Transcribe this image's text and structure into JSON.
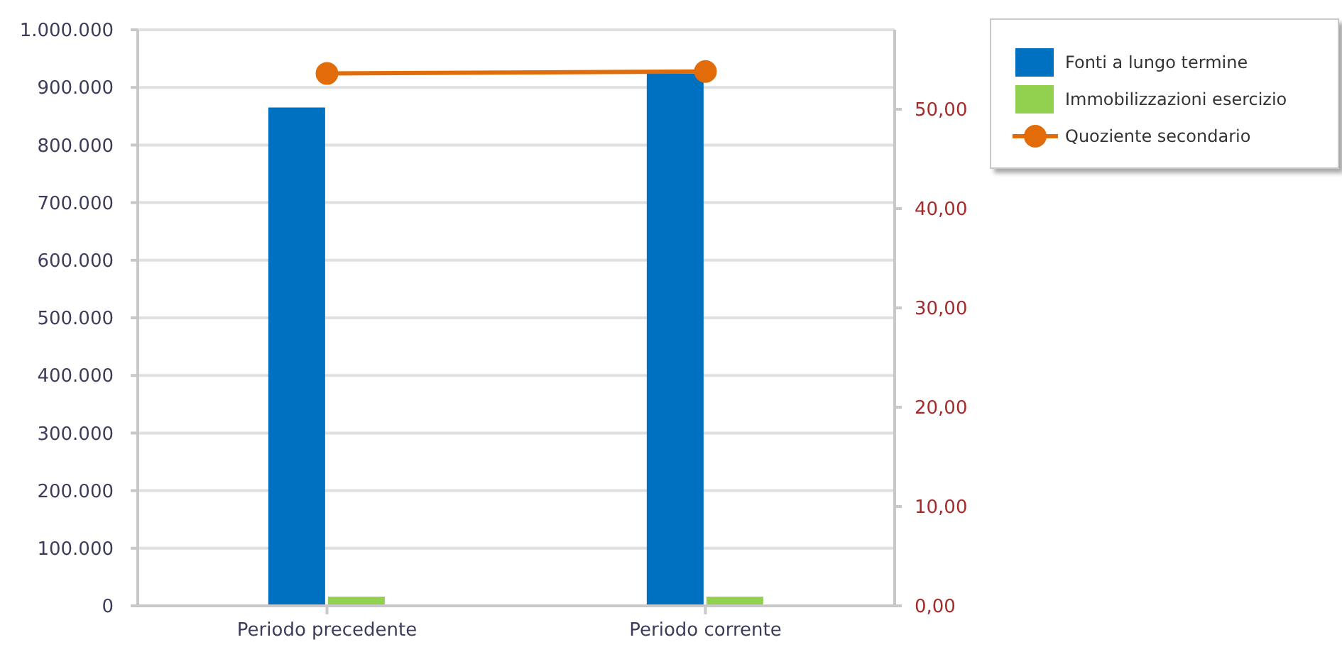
{
  "chart_data": {
    "type": "bar",
    "categories": [
      "Periodo precedente",
      "Periodo corrente"
    ],
    "series": [
      {
        "name": "Fonti a lungo termine",
        "color": "#0070c0",
        "values": [
          865000,
          924000
        ]
      },
      {
        "name": "Immobilizzazioni esercizio",
        "color": "#92d050",
        "values": [
          16000,
          16000
        ]
      },
      {
        "name": "Quoziente secondario",
        "type": "line",
        "axis": "y2",
        "color": "#e36c0a",
        "values": [
          53.6,
          53.8
        ]
      }
    ],
    "ylim": [
      0,
      1000000
    ],
    "yticks": [
      0,
      {
        "value": 100000,
        "label": "100.000"
      },
      {
        "value": 200000,
        "label": "200.000"
      },
      {
        "value": 300000,
        "label": "300.000"
      },
      {
        "value": 400000,
        "label": "400.000"
      },
      {
        "value": 500000,
        "label": "500.000"
      },
      {
        "value": 600000,
        "label": "600.000"
      },
      {
        "value": 700000,
        "label": "700.000"
      },
      {
        "value": 800000,
        "label": "800.000"
      },
      {
        "value": 900000,
        "label": "900.000"
      },
      {
        "value": 1000000,
        "label": "1.000.000"
      }
    ],
    "y2lim": [
      0,
      58
    ],
    "y2ticks": [
      {
        "value": 0,
        "label": "0,00"
      },
      {
        "value": 10,
        "label": "10,00"
      },
      {
        "value": 20,
        "label": "20,00"
      },
      {
        "value": 30,
        "label": "30,00"
      },
      {
        "value": 40,
        "label": "40,00"
      },
      {
        "value": 50,
        "label": "50,00"
      }
    ],
    "grid": "y",
    "legend": "top right",
    "marker": "circle",
    "line_style": "solid"
  }
}
